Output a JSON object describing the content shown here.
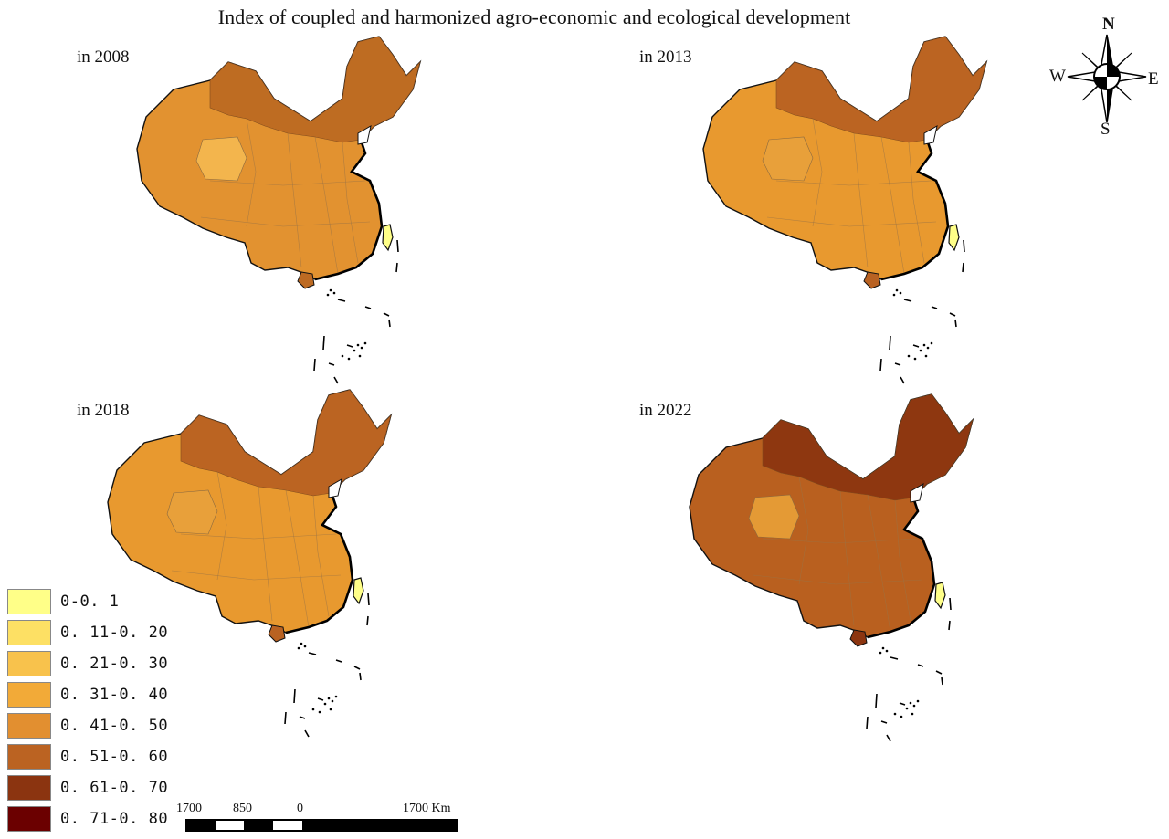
{
  "title": "Index of coupled and harmonized agro-economic and ecological development",
  "maps": [
    {
      "label": "in 2008",
      "mainland": "#e29230",
      "north": "#bd6a22",
      "inner": "#f3b54d",
      "taiwan": "#ffff88"
    },
    {
      "label": "in 2013",
      "mainland": "#e8992f",
      "north": "#b96222",
      "inner": "#e8a03a",
      "taiwan": "#ffff88"
    },
    {
      "label": "in 2018",
      "mainland": "#e8992f",
      "north": "#b96222",
      "inner": "#e8a03a",
      "taiwan": "#ffff88"
    },
    {
      "label": "in 2022",
      "mainland": "#b9601f",
      "north": "#8c3510",
      "inner": "#e49a35",
      "taiwan": "#ffff88"
    }
  ],
  "legend": {
    "items": [
      {
        "label": "0-0. 1",
        "color": "#ffff88"
      },
      {
        "label": "0. 11-0. 20",
        "color": "#fde064"
      },
      {
        "label": "0. 21-0. 30",
        "color": "#f8c24c"
      },
      {
        "label": "0. 31-0. 40",
        "color": "#f2aa38"
      },
      {
        "label": "0. 41-0. 50",
        "color": "#e28f30"
      },
      {
        "label": "0. 51-0. 60",
        "color": "#bb6322"
      },
      {
        "label": "0. 61-0. 70",
        "color": "#8b3410"
      },
      {
        "label": "0. 71-0. 80",
        "color": "#6b0000"
      }
    ]
  },
  "scale_bar": {
    "labels": [
      "1700",
      "850",
      "0",
      "1700 Km"
    ]
  },
  "compass": {
    "n": "N",
    "s": "S",
    "e": "E",
    "w": "W"
  }
}
